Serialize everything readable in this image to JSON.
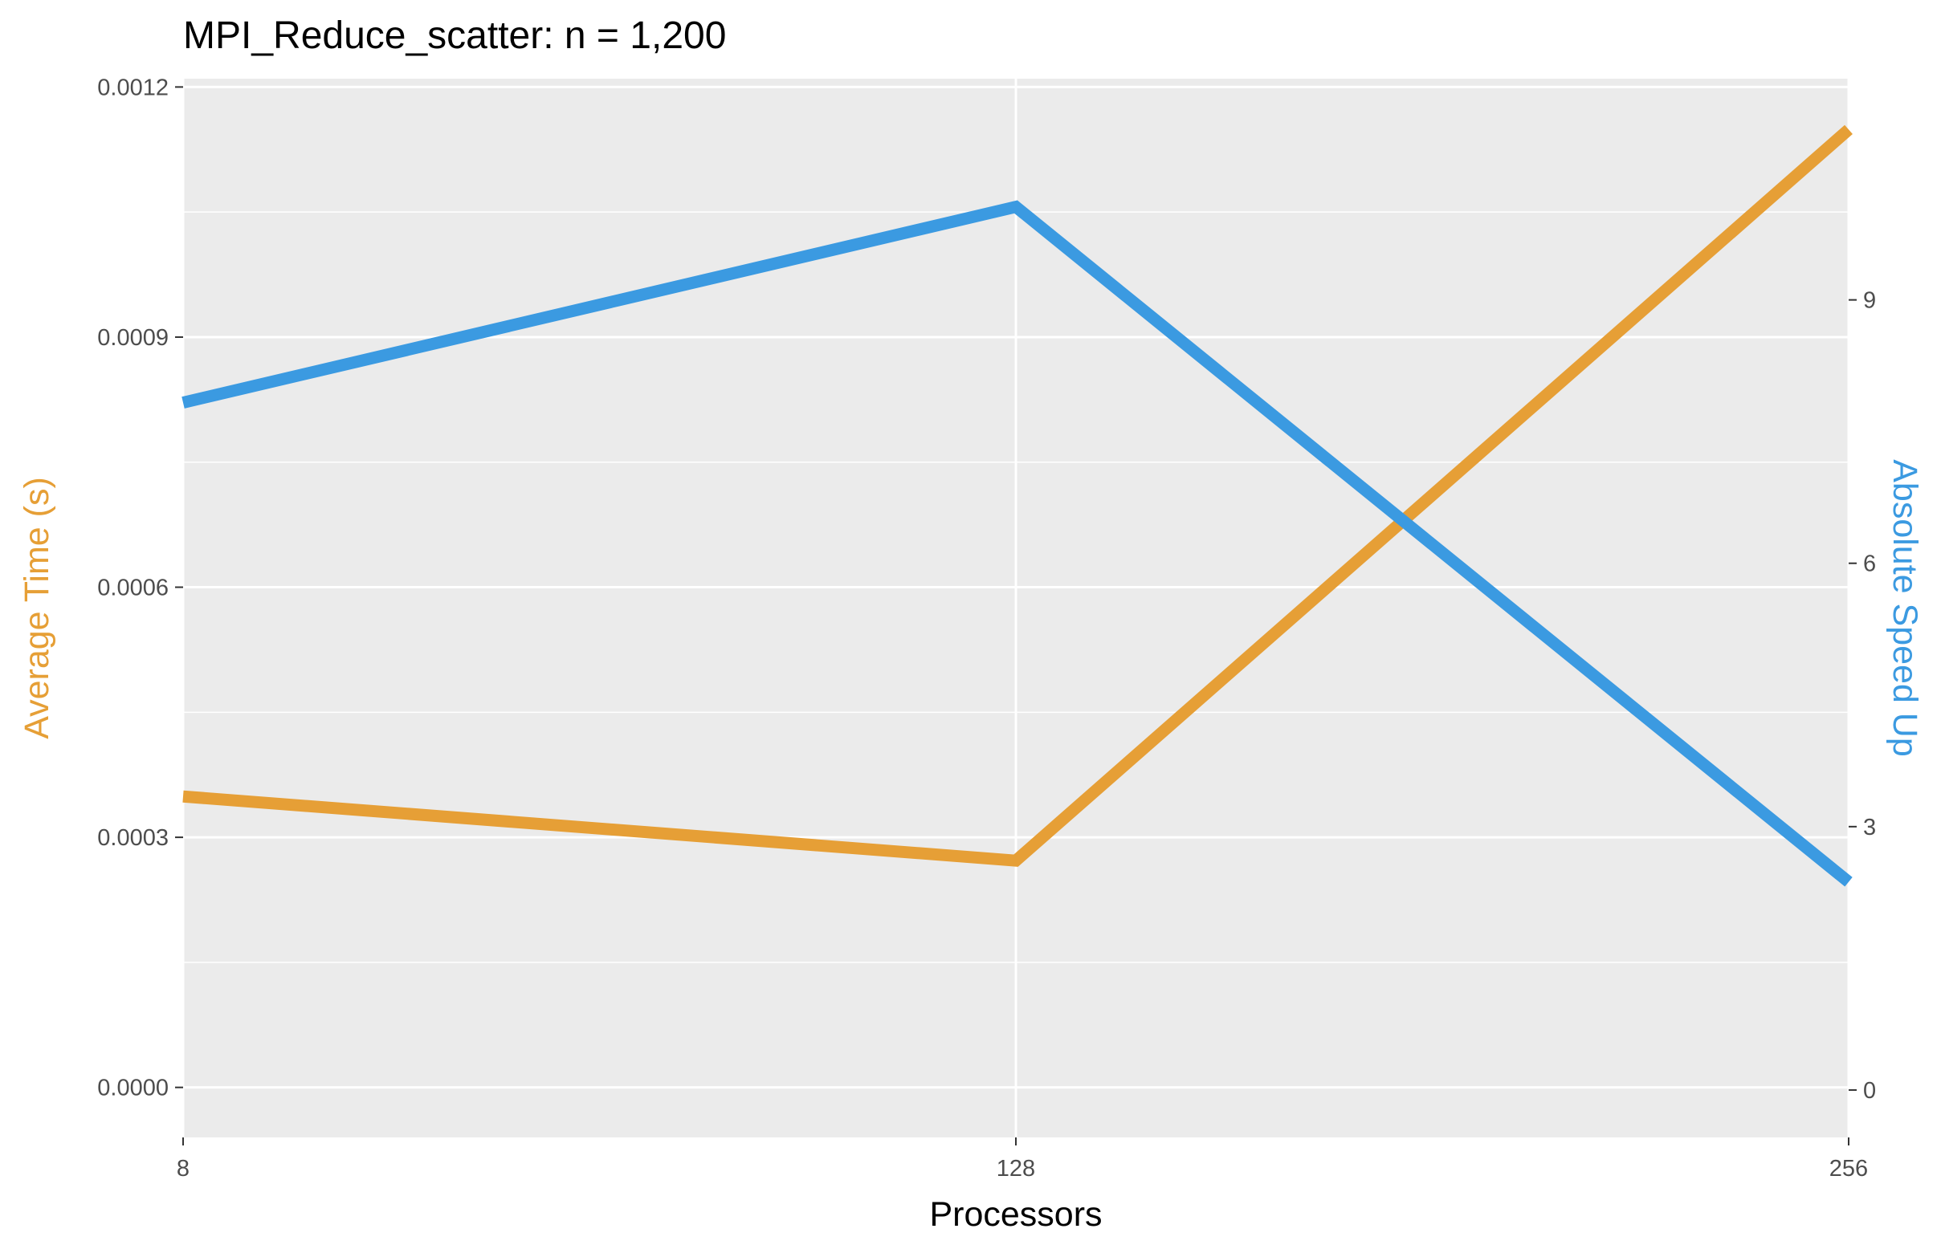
{
  "chart_data": {
    "type": "line",
    "title": "MPI_Reduce_scatter: n = 1,200",
    "xlabel": "Processors",
    "ylabel_left": "Average Time (s)",
    "ylabel_right": "Absolute Speed Up",
    "x": [
      8,
      128,
      256
    ],
    "x_tick_labels": [
      "8",
      "128",
      "256"
    ],
    "y_left_ticks": [
      "0.0000",
      "0.0003",
      "0.0006",
      "0.0009",
      "0.0012"
    ],
    "y_right_ticks": [
      "0",
      "3",
      "6",
      "9"
    ],
    "ylim_left": [
      -6e-05,
      0.00121
    ],
    "ylim_right": [
      -0.54,
      11.52
    ],
    "grid": true,
    "legend": "none",
    "colors": {
      "left": "#E69F36",
      "right": "#3B9AE1",
      "panel": "#EBEBEB",
      "grid": "#FFFFFF"
    },
    "series": [
      {
        "axis": "left",
        "values": [
          0.000349,
          0.000272,
          0.001149
        ]
      },
      {
        "axis": "right",
        "values": [
          7.83,
          10.06,
          2.37
        ]
      }
    ]
  }
}
